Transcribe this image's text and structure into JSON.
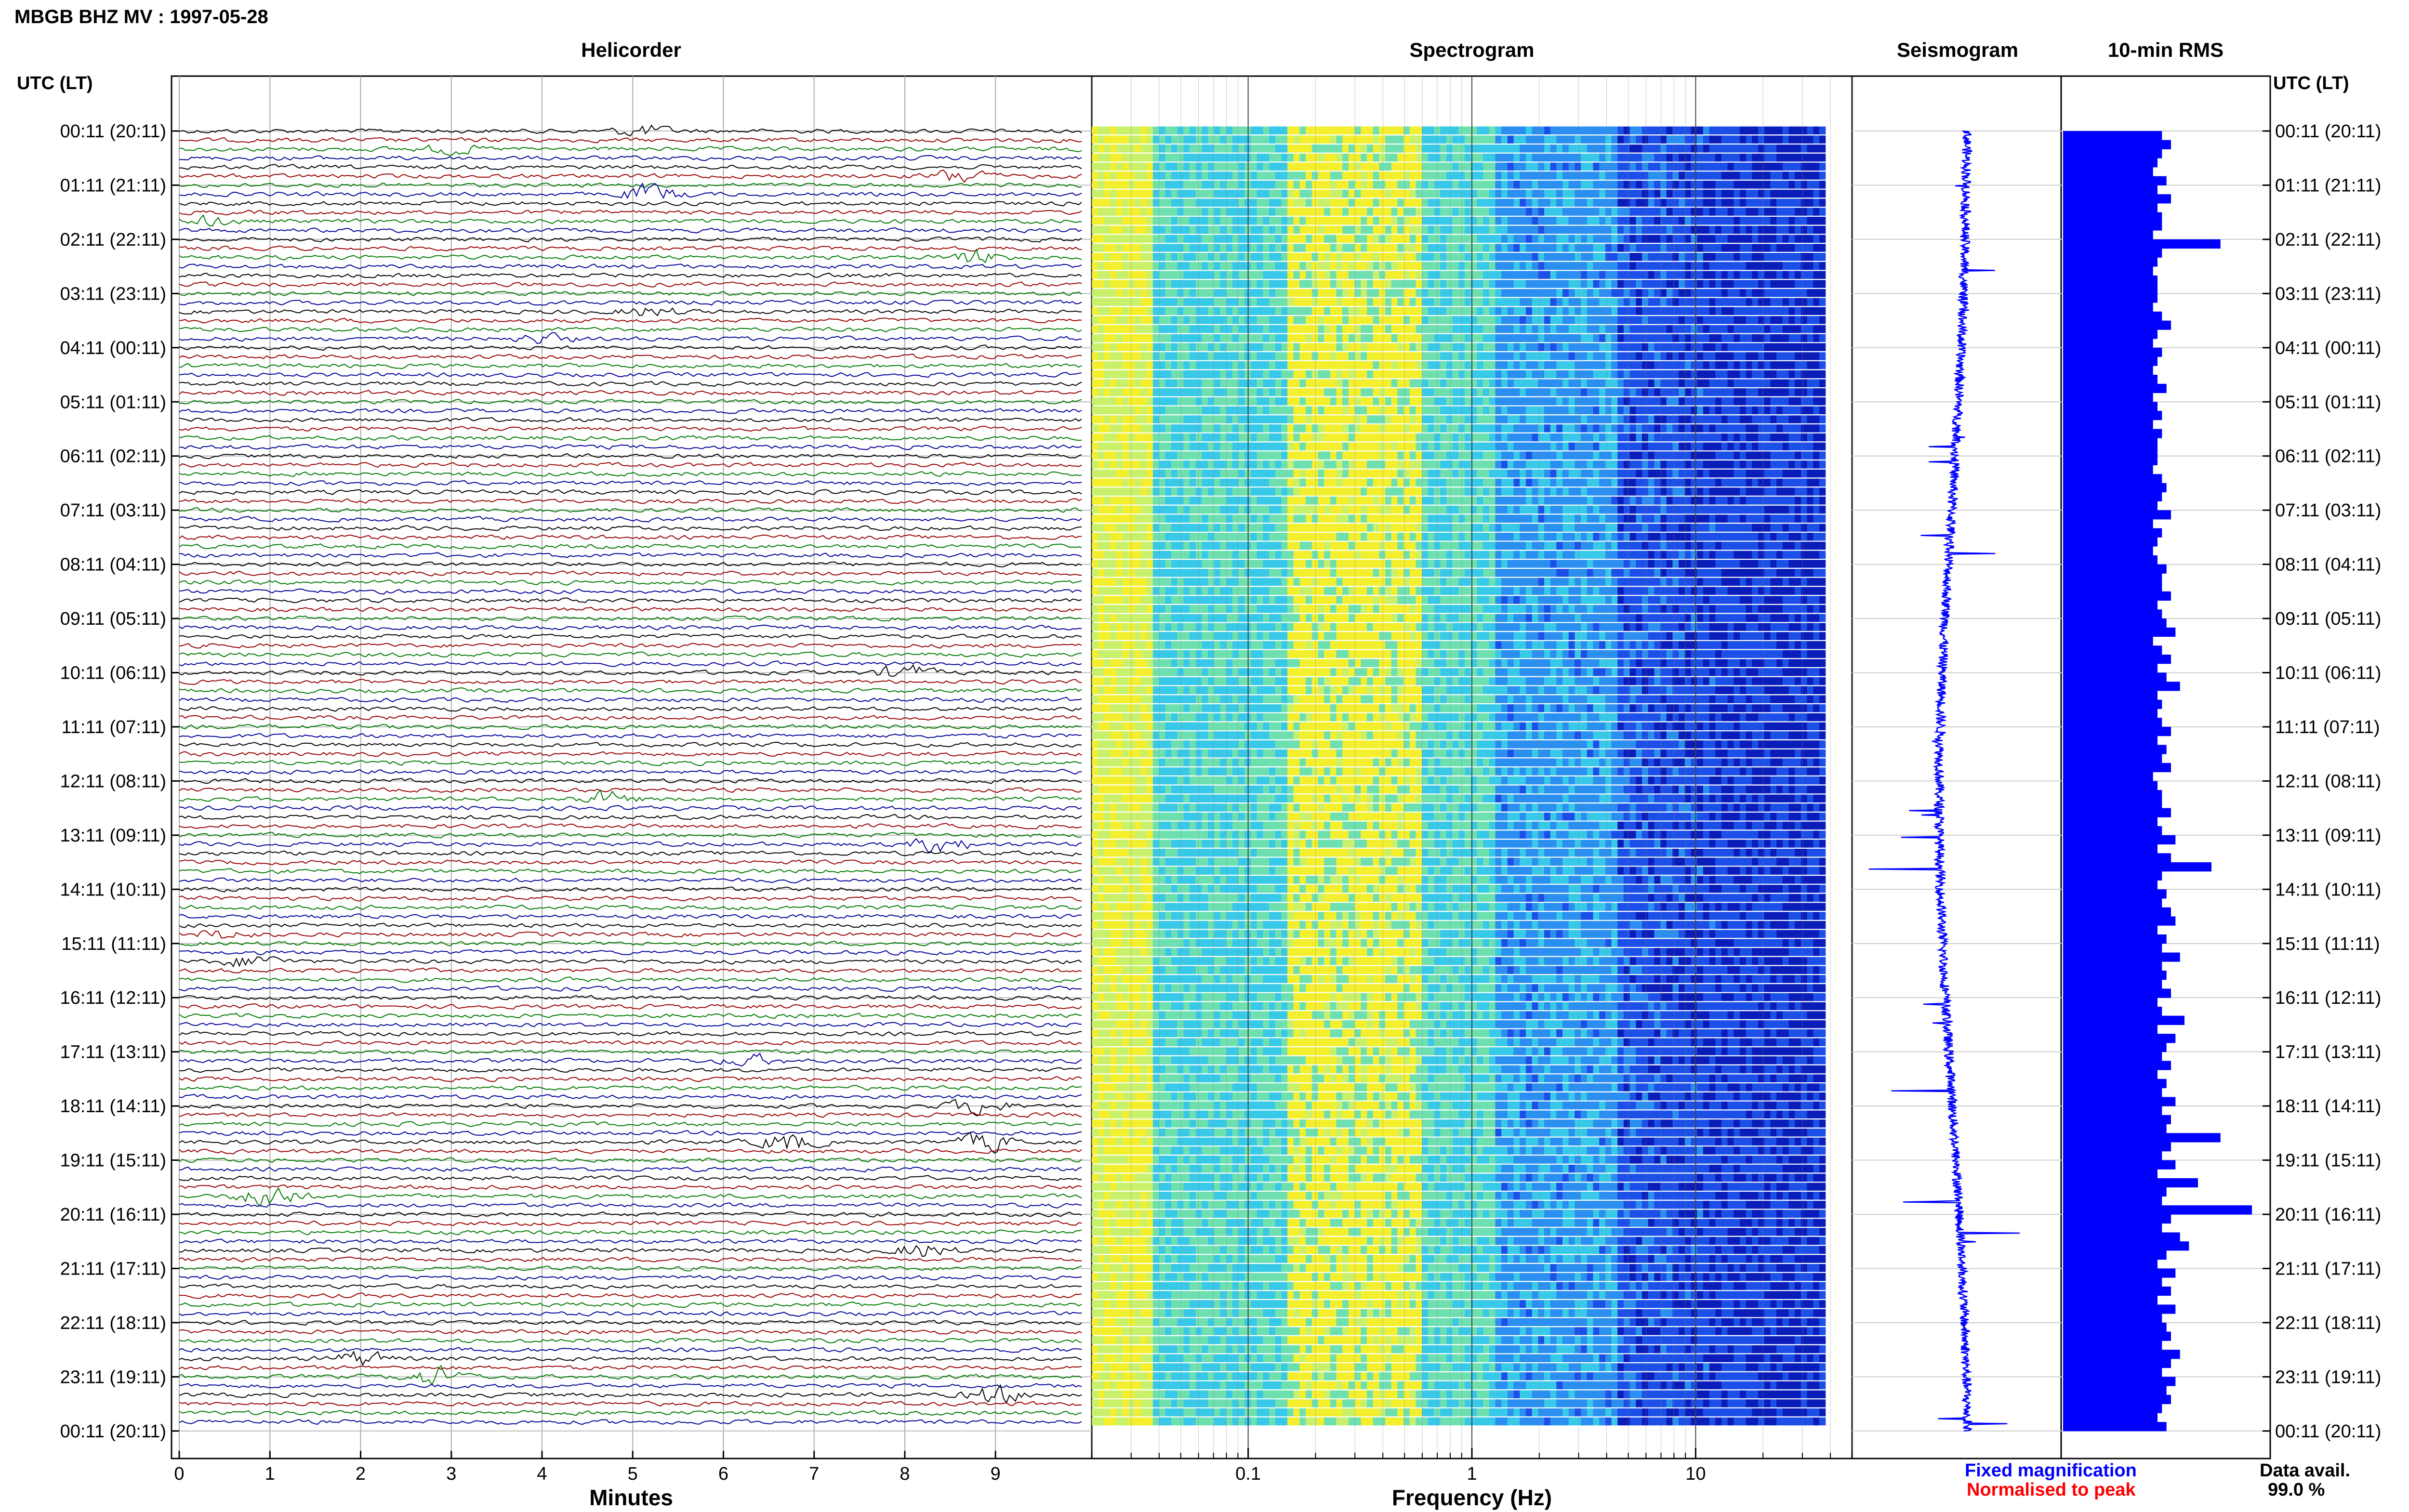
{
  "header": {
    "station_title": "MBGB BHZ MV : 1997-05-28"
  },
  "panels": {
    "helicorder": "Helicorder",
    "spectrogram": "Spectrogram",
    "seismogram": "Seismogram",
    "rms": "10-min RMS"
  },
  "axis_titles": {
    "left": "UTC (LT)",
    "right": "UTC (LT)"
  },
  "legend": {
    "fixed": "Fixed magnification",
    "normalised": "Normalised to peak",
    "fixed_color": "#0000ff",
    "normalised_color": "#ff0000"
  },
  "data_avail": {
    "label": "Data avail.",
    "value": "99.0 %"
  },
  "colors": {
    "trace_cycle": [
      "#000000",
      "#990000",
      "#007a00",
      "#000099"
    ],
    "rms_bar": "#0000ff",
    "seismogram": "#0000ff"
  },
  "chart_data": [
    {
      "type": "line",
      "panel": "Helicorder",
      "xlabel": "Minutes",
      "xlim": [
        0,
        10
      ],
      "x_ticks": [
        0,
        1,
        2,
        3,
        4,
        5,
        6,
        7,
        8,
        9
      ],
      "rows_per_hour": 6,
      "time_labels": [
        "00:11 (20:11)",
        "01:11 (21:11)",
        "02:11 (22:11)",
        "03:11 (23:11)",
        "04:11 (00:11)",
        "05:11 (01:11)",
        "06:11 (02:11)",
        "07:11 (03:11)",
        "08:11 (04:11)",
        "09:11 (05:11)",
        "10:11 (06:11)",
        "11:11 (07:11)",
        "12:11 (08:11)",
        "13:11 (09:11)",
        "14:11 (10:11)",
        "15:11 (11:11)",
        "16:11 (12:11)",
        "17:11 (13:11)",
        "18:11 (14:11)",
        "19:11 (15:11)",
        "20:11 (16:11)",
        "21:11 (17:11)",
        "22:11 (18:11)",
        "23:11 (19:11)",
        "00:11 (20:11)"
      ],
      "events_minutes": [
        {
          "row": 0,
          "t": 5.1,
          "amp": 1.5
        },
        {
          "row": 2,
          "t": 3.0,
          "amp": 1.2
        },
        {
          "row": 5,
          "t": 8.6,
          "amp": 2.0
        },
        {
          "row": 7,
          "t": 5.2,
          "amp": 2.5
        },
        {
          "row": 10,
          "t": 0.3,
          "amp": 1.2
        },
        {
          "row": 14,
          "t": 8.8,
          "amp": 2.0
        },
        {
          "row": 20,
          "t": 5.2,
          "amp": 1.3
        },
        {
          "row": 23,
          "t": 4.0,
          "amp": 1.2
        },
        {
          "row": 60,
          "t": 8.0,
          "amp": 2.0
        },
        {
          "row": 74,
          "t": 4.7,
          "amp": 1.8
        },
        {
          "row": 79,
          "t": 8.4,
          "amp": 2.4
        },
        {
          "row": 89,
          "t": 0.5,
          "amp": 1.3
        },
        {
          "row": 92,
          "t": 0.8,
          "amp": 1.8
        },
        {
          "row": 103,
          "t": 6.3,
          "amp": 1.4
        },
        {
          "row": 108,
          "t": 8.8,
          "amp": 2.6
        },
        {
          "row": 112,
          "t": 6.7,
          "amp": 2.8
        },
        {
          "row": 112,
          "t": 8.9,
          "amp": 2.5
        },
        {
          "row": 118,
          "t": 1.0,
          "amp": 3.8
        },
        {
          "row": 124,
          "t": 8.2,
          "amp": 2.0
        },
        {
          "row": 136,
          "t": 2.0,
          "amp": 2.0
        },
        {
          "row": 138,
          "t": 2.8,
          "amp": 2.5
        },
        {
          "row": 140,
          "t": 9.0,
          "amp": 2.4
        }
      ]
    },
    {
      "type": "heatmap",
      "panel": "Spectrogram",
      "xlabel": "Frequency (Hz)",
      "x_scale": "log",
      "xlim": [
        0.02,
        50
      ],
      "x_tick_labels": [
        "0.1",
        "1",
        "10"
      ],
      "x_tick_values": [
        0.1,
        1,
        10
      ],
      "data_max_frequency_hz": 38,
      "colormap": [
        "#c8f06a",
        "#f3ef2e",
        "#6ee0b0",
        "#38c8e8",
        "#2a8ff0",
        "#1b4fe8",
        "#0a1db8"
      ]
    },
    {
      "type": "line",
      "panel": "Seismogram",
      "description_values": "long-period drift trace"
    },
    {
      "type": "bar",
      "panel": "10-min RMS",
      "orientation": "horizontal",
      "values": [
        22,
        24,
        22,
        21,
        20,
        23,
        21,
        24,
        21,
        22,
        22,
        20,
        35,
        22,
        21,
        20,
        21,
        21,
        21,
        20,
        22,
        24,
        21,
        20,
        22,
        21,
        20,
        21,
        23,
        20,
        21,
        22,
        20,
        22,
        21,
        21,
        21,
        20,
        22,
        23,
        22,
        21,
        24,
        20,
        22,
        21,
        20,
        21,
        23,
        22,
        22,
        24,
        21,
        22,
        23,
        25,
        20,
        22,
        24,
        21,
        23,
        26,
        21,
        22,
        21,
        22,
        24,
        21,
        23,
        22,
        24,
        20,
        21,
        22,
        22,
        24,
        21,
        22,
        25,
        21,
        24,
        33,
        22,
        21,
        23,
        22,
        24,
        25,
        21,
        23,
        22,
        26,
        22,
        23,
        22,
        24,
        21,
        22,
        27,
        21,
        25,
        23,
        22,
        24,
        21,
        23,
        22,
        25,
        22,
        24,
        23,
        35,
        24,
        22,
        25,
        21,
        30,
        23,
        22,
        42,
        24,
        22,
        26,
        28,
        23,
        21,
        25,
        22,
        24,
        21,
        25,
        22,
        23,
        24,
        22,
        26,
        24,
        22,
        25,
        23,
        24,
        22,
        21,
        23
      ]
    }
  ]
}
